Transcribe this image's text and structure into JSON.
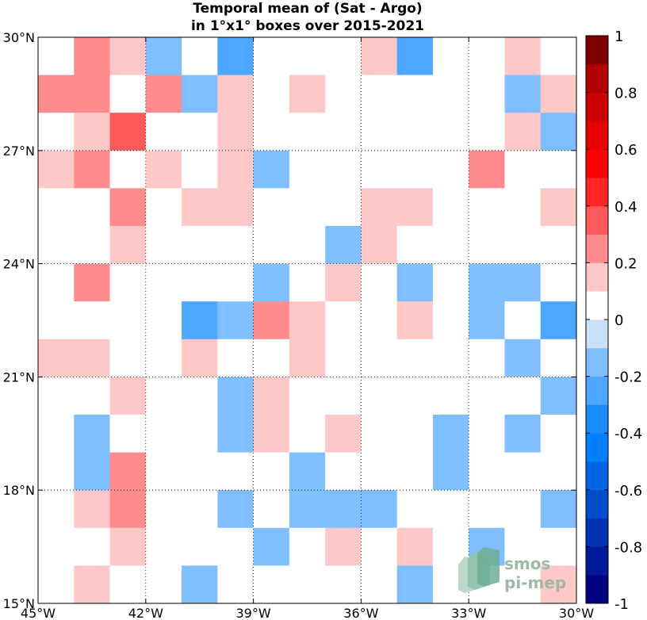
{
  "chart_data": {
    "type": "heatmap",
    "title_lines": [
      "Temporal mean of (Sat - Argo)",
      "in 1°x1° boxes over 2015-2021"
    ],
    "x_range": [
      -45,
      -30
    ],
    "y_range": [
      15,
      30
    ],
    "cell_size_deg": 1,
    "x_ticks": [
      -45,
      -42,
      -39,
      -36,
      -33,
      -30
    ],
    "x_tick_labels": [
      "45°W",
      "42°W",
      "39°W",
      "36°W",
      "33°W",
      "30°W"
    ],
    "y_ticks": [
      15,
      18,
      21,
      24,
      27,
      30
    ],
    "y_tick_labels": [
      "15°N",
      "18°N",
      "21°N",
      "24°N",
      "27°N",
      "30°N"
    ],
    "grid": "dotted",
    "colorbar": {
      "range": [
        -1,
        1
      ],
      "levels": 20,
      "ticks": [
        1,
        0.8,
        0.6,
        0.4,
        0.2,
        0,
        -0.2,
        -0.4,
        -0.6,
        -0.8,
        -1
      ],
      "tick_labels": [
        "1",
        "0.8",
        "0.6",
        "0.4",
        "0.2",
        "0",
        "-0.2",
        "-0.4",
        "-0.6",
        "-0.8",
        "-1"
      ],
      "colors_low_to_high": [
        "#000080",
        "#001a99",
        "#0033b3",
        "#004dcc",
        "#0066e6",
        "#0080ff",
        "#1a8cff",
        "#4da6ff",
        "#80bfff",
        "#c8e0f8",
        "#ffffff",
        "#ffc8c8",
        "#ff8c8c",
        "#ff5959",
        "#ff2626",
        "#ff0000",
        "#e60000",
        "#cc0000",
        "#b30000",
        "#800000"
      ]
    },
    "row_lat_north_to_south": [
      29.5,
      28.5,
      27.5,
      26.5,
      25.5,
      24.5,
      23.5,
      22.5,
      21.5,
      20.5,
      19.5,
      18.5,
      17.5,
      16.5,
      15.5
    ],
    "col_lon_west_to_east": [
      -44.5,
      -43.5,
      -42.5,
      -41.5,
      -40.5,
      -39.5,
      -38.5,
      -37.5,
      -36.5,
      -35.5,
      -34.5,
      -33.5,
      -32.5,
      -31.5,
      -30.5
    ],
    "values_rows_north_to_south": [
      [
        0,
        0.2,
        0.15,
        -0.15,
        0,
        -0.3,
        0,
        0,
        0,
        0.15,
        -0.3,
        0,
        0,
        0.15,
        0
      ],
      [
        0.2,
        0.2,
        0,
        0.25,
        -0.15,
        0.15,
        0,
        0.15,
        0,
        0,
        0,
        0,
        0,
        -0.15,
        0.15
      ],
      [
        0,
        0.15,
        0.35,
        0,
        0,
        0.15,
        0,
        0,
        0,
        0,
        0,
        0,
        0,
        0.15,
        -0.15
      ],
      [
        0.15,
        0.25,
        0,
        0.15,
        0,
        0.15,
        -0.15,
        0,
        0,
        0,
        0,
        0,
        0.25,
        0,
        0
      ],
      [
        0,
        0,
        0.25,
        0,
        0.15,
        0.15,
        0,
        0,
        0,
        0.15,
        0.15,
        0,
        0,
        0,
        0.15
      ],
      [
        0,
        0,
        0.15,
        0,
        0,
        0,
        0,
        0,
        -0.15,
        0.15,
        0,
        0,
        0,
        0,
        0
      ],
      [
        0,
        0.25,
        0,
        0,
        0,
        0,
        -0.15,
        0,
        0.15,
        0,
        -0.15,
        0,
        -0.15,
        -0.15,
        0
      ],
      [
        0,
        0,
        0,
        0,
        -0.25,
        -0.15,
        0.25,
        0.15,
        0,
        0,
        0.15,
        0,
        -0.15,
        0,
        -0.25
      ],
      [
        0.15,
        0.15,
        0,
        0,
        0.15,
        0,
        0,
        0.15,
        0,
        0,
        0,
        0,
        0,
        -0.15,
        0
      ],
      [
        0,
        0,
        0.15,
        0,
        0,
        -0.15,
        0.15,
        0,
        0,
        0,
        0,
        0,
        0,
        0,
        -0.15
      ],
      [
        0,
        -0.15,
        0,
        0,
        0,
        -0.15,
        0.15,
        0,
        0.15,
        0,
        0,
        -0.15,
        0,
        -0.15,
        0
      ],
      [
        0,
        -0.15,
        0.25,
        0,
        0,
        0,
        0,
        -0.15,
        0,
        0,
        0,
        -0.15,
        0,
        0,
        0
      ],
      [
        0,
        0.15,
        0.25,
        0,
        0,
        -0.15,
        0,
        -0.15,
        -0.15,
        -0.15,
        0,
        0,
        0,
        0,
        -0.15
      ],
      [
        0,
        0,
        0.15,
        0,
        0,
        0,
        -0.15,
        0,
        0.15,
        0,
        0.15,
        0,
        -0.15,
        0,
        0
      ],
      [
        0,
        0.15,
        0,
        0,
        -0.15,
        0,
        0,
        0,
        0,
        0,
        -0.15,
        0,
        0,
        0,
        0.15
      ]
    ]
  },
  "logo": {
    "line1": "smos",
    "line2": "pi-mep"
  }
}
